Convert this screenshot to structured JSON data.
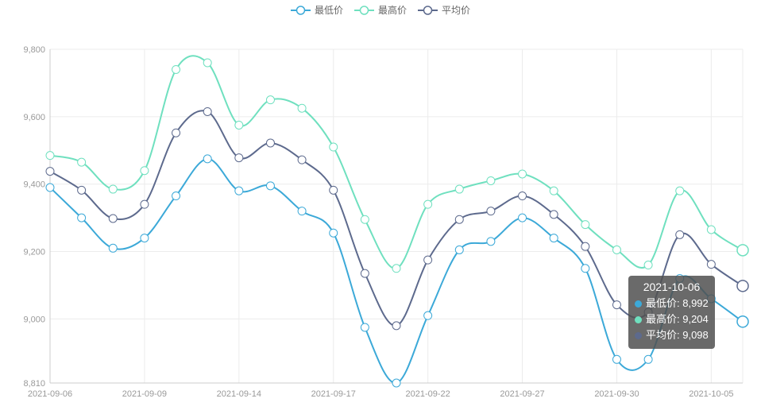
{
  "legend": [
    {
      "name": "最低价",
      "color": "#3ca9d8"
    },
    {
      "name": "最高价",
      "color": "#6fe0bf"
    },
    {
      "name": "平均价",
      "color": "#5d6a8d"
    }
  ],
  "tooltip": {
    "date": "2021-10-06",
    "rows": [
      {
        "label": "最低价: 8,992",
        "color": "#3ca9d8"
      },
      {
        "label": "最高价: 9,204",
        "color": "#6fe0bf"
      },
      {
        "label": "平均价: 9,098",
        "color": "#5d6a8d"
      }
    ]
  },
  "chart_data": {
    "type": "line",
    "ylim": [
      8810,
      9800
    ],
    "yticks": [
      "8,810",
      "9,000",
      "9,200",
      "9,400",
      "9,600",
      "9,800"
    ],
    "ytick_values": [
      8810,
      9000,
      9200,
      9400,
      9600,
      9800
    ],
    "xtick_labels": [
      "2021-09-06",
      "2021-09-09",
      "2021-09-14",
      "2021-09-17",
      "2021-09-22",
      "2021-09-27",
      "2021-09-30",
      "2021-10-05"
    ],
    "xtick_indices": [
      0,
      3,
      6,
      9,
      12,
      15,
      18,
      21
    ],
    "grid": true,
    "legend_position": "top-center",
    "x": [
      "2021-09-06",
      "2021-09-07",
      "2021-09-08",
      "2021-09-09",
      "2021-09-10",
      "2021-09-13",
      "2021-09-14",
      "2021-09-15",
      "2021-09-16",
      "2021-09-17",
      "2021-09-18",
      "2021-09-21",
      "2021-09-22",
      "2021-09-23",
      "2021-09-24",
      "2021-09-27",
      "2021-09-28",
      "2021-09-29",
      "2021-09-30",
      "2021-10-01",
      "2021-10-04",
      "2021-10-05",
      "2021-10-06"
    ],
    "series": [
      {
        "name": "最低价",
        "color": "#3ca9d8",
        "values": [
          9390,
          9300,
          9210,
          9240,
          9365,
          9475,
          9380,
          9395,
          9320,
          9255,
          8975,
          8810,
          9010,
          9205,
          9230,
          9300,
          9240,
          9150,
          8880,
          8880,
          9120,
          9060,
          8992
        ]
      },
      {
        "name": "最高价",
        "color": "#6fe0bf",
        "values": [
          9485,
          9465,
          9385,
          9440,
          9740,
          9760,
          9575,
          9650,
          9625,
          9510,
          9295,
          9150,
          9340,
          9385,
          9410,
          9430,
          9380,
          9280,
          9205,
          9160,
          9380,
          9265,
          9204
        ]
      },
      {
        "name": "平均价",
        "color": "#5d6a8d",
        "values": [
          9438,
          9382,
          9298,
          9340,
          9552,
          9615,
          9478,
          9522,
          9472,
          9382,
          9135,
          8980,
          9175,
          9295,
          9320,
          9365,
          9310,
          9215,
          9042,
          9020,
          9250,
          9162,
          9098
        ]
      }
    ]
  }
}
